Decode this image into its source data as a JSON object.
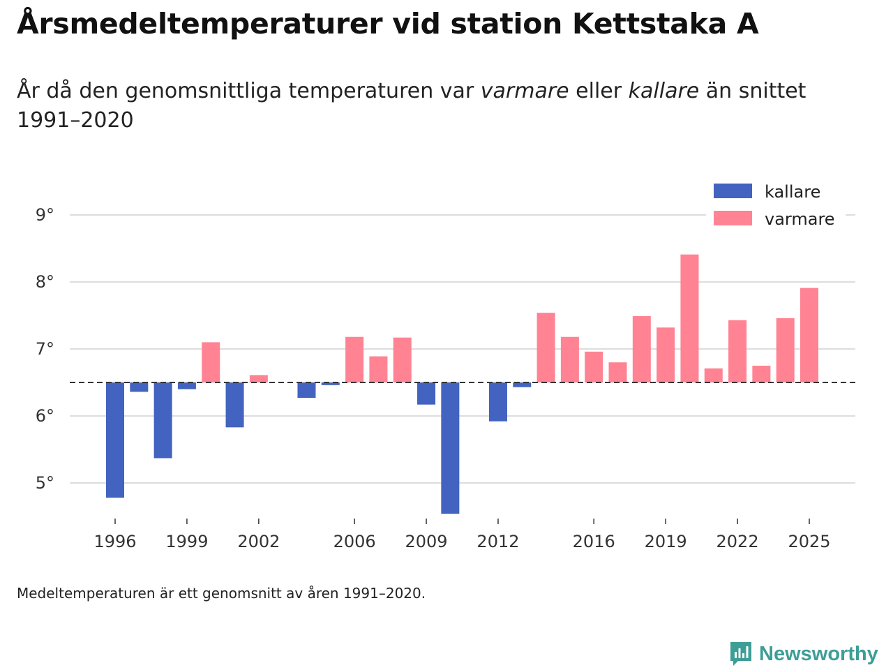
{
  "title": "Årsmedeltemperaturer vid station Kettstaka A",
  "subtitle": {
    "part1": "År då den genomsnittliga temperaturen var ",
    "warmer": "varmare",
    "part2": " eller ",
    "colder": "kallare",
    "part3": " än snittet 1991–2020"
  },
  "footnote": "Medeltemperaturen är ett genomsnitt av åren 1991–2020.",
  "brand": {
    "name": "Newsworthy",
    "icon": "newsworthy-logo-icon",
    "color": "#3d9e96"
  },
  "colors": {
    "colder": "#4263c0",
    "warmer": "#ff8393",
    "grid": "#dddddd",
    "baseline": "#333333"
  },
  "chart_data": {
    "type": "bar",
    "title": "Årsmedeltemperaturer vid station Kettstaka A",
    "xlabel": "",
    "ylabel": "",
    "baseline": 6.5,
    "ylim": [
      4.5,
      9.5
    ],
    "yticks": [
      5,
      6,
      7,
      8,
      9
    ],
    "ytick_suffix": "°",
    "xlim": [
      1995.5,
      2026.5
    ],
    "xticks": [
      1996,
      1999,
      2002,
      2006,
      2009,
      2012,
      2016,
      2019,
      2022,
      2025
    ],
    "grid": true,
    "legend": {
      "position": "top-right",
      "entries": [
        "kallare",
        "varmare"
      ]
    },
    "years": [
      1996,
      1997,
      1998,
      1999,
      2000,
      2001,
      2002,
      2004,
      2005,
      2006,
      2007,
      2008,
      2009,
      2010,
      2012,
      2013,
      2014,
      2015,
      2016,
      2017,
      2018,
      2019,
      2020,
      2021,
      2022,
      2023,
      2024,
      2025
    ],
    "values": [
      4.78,
      6.36,
      5.37,
      6.4,
      7.1,
      5.83,
      6.61,
      6.27,
      6.46,
      7.18,
      6.89,
      7.17,
      6.17,
      4.54,
      5.92,
      6.43,
      7.54,
      7.18,
      6.96,
      6.8,
      7.49,
      7.32,
      8.41,
      6.71,
      7.43,
      6.75,
      7.46,
      7.91
    ]
  }
}
